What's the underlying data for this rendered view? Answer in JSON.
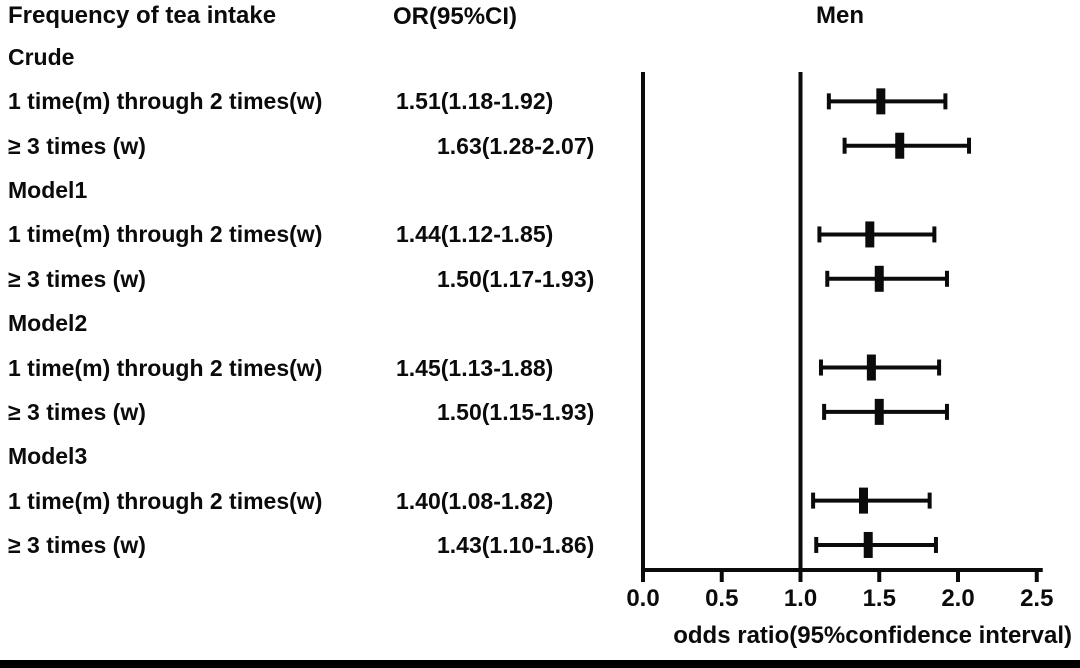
{
  "figure": {
    "col_header_label": "Frequency of tea intake",
    "col_header_or": "OR(95%CI)",
    "plot_title": "Men",
    "colors": {
      "ink": "#0b0b0b",
      "background": "#ffffff"
    }
  },
  "chart_data": {
    "type": "scatter",
    "subtype": "forest-plot",
    "title": "Men",
    "xlabel": "odds ratio(95%confidence interval)",
    "xlim": [
      0.0,
      2.5
    ],
    "xticks": [
      0.0,
      0.5,
      1.0,
      1.5,
      2.0,
      2.5
    ],
    "xtick_labels": [
      "0.0",
      "0.5",
      "1.0",
      "1.5",
      "2.0",
      "2.5"
    ],
    "reference_line": 1.0,
    "grid": "off",
    "rows": [
      {
        "kind": "group",
        "label": "Crude"
      },
      {
        "kind": "data",
        "label": "1 time(m) through 2 times(w)",
        "or_text": "1.51(1.18-1.92)",
        "est": 1.51,
        "lo": 1.18,
        "hi": 1.92
      },
      {
        "kind": "data",
        "label": "≥ 3 times (w)",
        "or_text": "1.63(1.28-2.07)",
        "est": 1.63,
        "lo": 1.28,
        "hi": 2.07
      },
      {
        "kind": "group",
        "label": "Model1"
      },
      {
        "kind": "data",
        "label": "1 time(m) through 2 times(w)",
        "or_text": "1.44(1.12-1.85)",
        "est": 1.44,
        "lo": 1.12,
        "hi": 1.85
      },
      {
        "kind": "data",
        "label": "≥ 3 times (w)",
        "or_text": "1.50(1.17-1.93)",
        "est": 1.5,
        "lo": 1.17,
        "hi": 1.93
      },
      {
        "kind": "group",
        "label": "Model2"
      },
      {
        "kind": "data",
        "label": "1 time(m) through 2 times(w)",
        "or_text": "1.45(1.13-1.88)",
        "est": 1.45,
        "lo": 1.13,
        "hi": 1.88
      },
      {
        "kind": "data",
        "label": "≥ 3 times (w)",
        "or_text": "1.50(1.15-1.93)",
        "est": 1.5,
        "lo": 1.15,
        "hi": 1.93
      },
      {
        "kind": "group",
        "label": "Model3"
      },
      {
        "kind": "data",
        "label": "1 time(m) through 2 times(w)",
        "or_text": "1.40(1.08-1.82)",
        "est": 1.4,
        "lo": 1.08,
        "hi": 1.82
      },
      {
        "kind": "data",
        "label": "≥ 3 times (w)",
        "or_text": "1.43(1.10-1.86)",
        "est": 1.43,
        "lo": 1.1,
        "hi": 1.86
      }
    ]
  }
}
